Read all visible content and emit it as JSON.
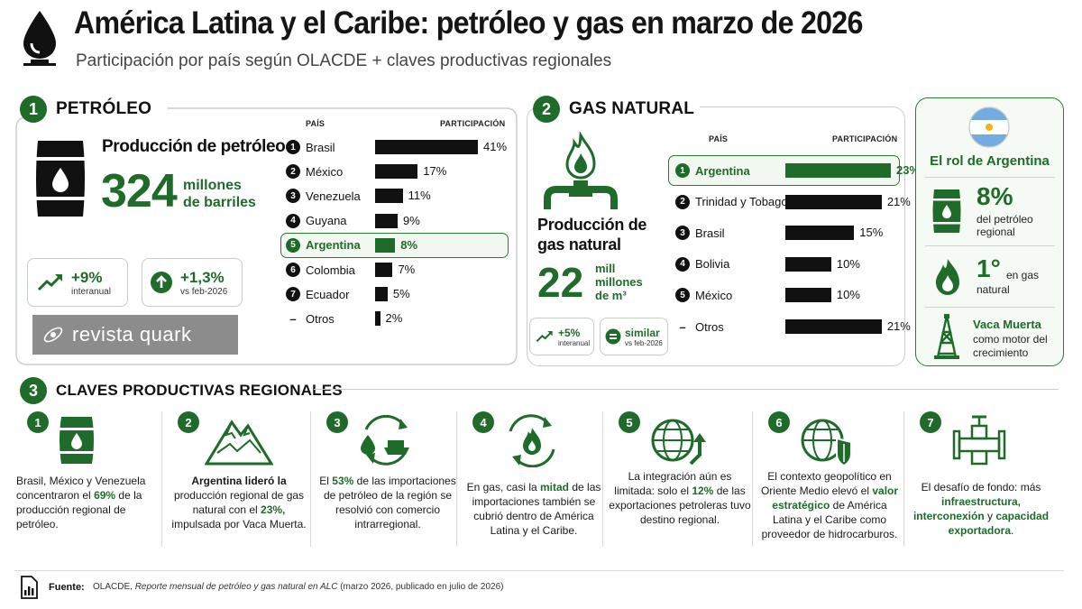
{
  "header": {
    "title": "América Latina y el Caribe: petróleo y gas en marzo de 2026",
    "subtitle": "Participación por país según OLACDE + claves productivas regionales"
  },
  "petroleo": {
    "num": "1",
    "title": "PETRÓLEO",
    "prod_label": "Producción de petróleo",
    "value": "324",
    "unit_line1": "millones",
    "unit_line2": "de barriles",
    "card1_big": "+9%",
    "card1_small": "interanual",
    "card2_big": "+1,3%",
    "card2_small": "vs feb-2026",
    "col_pais": "PAÍS",
    "col_part": "PARTICIPACIÓN"
  },
  "watermark": "revista quark",
  "gas": {
    "num": "2",
    "title": "GAS NATURAL",
    "prod_label_1": "Producción de",
    "prod_label_2": "gas natural",
    "value": "22",
    "unit_line1": "mill",
    "unit_line2": "millones",
    "unit_line3": "de m³",
    "card1_big": "+5%",
    "card1_small": "interanual",
    "card2_big": "similar",
    "card2_small": "vs feb-2026",
    "col_pais": "PAÍS",
    "col_part": "PARTICIPACIÓN"
  },
  "argentina": {
    "title": "El rol de Argentina",
    "stat1_value": "8%",
    "stat1_text1": "del petróleo",
    "stat1_text2": "regional",
    "stat2_value": "1°",
    "stat2_text1": "en gas",
    "stat2_text2": "natural",
    "stat3_title": "Vaca Muerta",
    "stat3_text1": "como motor del",
    "stat3_text2": "crecimiento"
  },
  "chart_data": [
    {
      "type": "bar",
      "categories": [
        "Brasil",
        "México",
        "Venezuela",
        "Guyana",
        "Argentina",
        "Colombia",
        "Ecuador",
        "Otros"
      ],
      "ranks": [
        "1",
        "2",
        "3",
        "4",
        "5",
        "6",
        "7",
        "–"
      ],
      "values": [
        41,
        17,
        11,
        9,
        8,
        7,
        5,
        2
      ],
      "labels": [
        "41%",
        "17%",
        "11%",
        "9%",
        "8%",
        "7%",
        "5%",
        "2%"
      ],
      "highlight": "Argentina",
      "highlight_color": "#1e6b2a",
      "bar_color": "#111111"
    },
    {
      "type": "bar",
      "categories": [
        "Argentina",
        "Trinidad y Tobago",
        "Brasil",
        "Bolivia",
        "México",
        "Otros"
      ],
      "ranks": [
        "1",
        "2",
        "3",
        "4",
        "5",
        "–"
      ],
      "values": [
        23,
        21,
        15,
        10,
        10,
        21
      ],
      "labels": [
        "23%",
        "21%",
        "15%",
        "10%",
        "10%",
        "21%"
      ],
      "highlight": "Argentina",
      "highlight_color": "#1e6b2a",
      "bar_color": "#111111"
    }
  ],
  "claves": {
    "num": "3",
    "title": "CLAVES PRODUCTIVAS REGIONALES",
    "items": [
      {
        "num": "1",
        "icon": "barrel-icon",
        "parts": [
          [
            "Brasil, México y Venezuela concentraron el ",
            ""
          ],
          [
            "69%",
            "g"
          ],
          [
            " de la producción regional de petróleo.",
            ""
          ]
        ]
      },
      {
        "num": "2",
        "icon": "mountain-icon",
        "parts": [
          [
            "Argentina lideró la",
            "b"
          ],
          [
            " producción regional de gas natural con el ",
            ""
          ],
          [
            "23%,",
            "g"
          ],
          [
            " impulsada por Vaca Muerta.",
            ""
          ]
        ]
      },
      {
        "num": "3",
        "icon": "trade-cycle-icon",
        "parts": [
          [
            "El ",
            ""
          ],
          [
            "53%",
            "g"
          ],
          [
            " de las importaciones de petróleo de la región se resolvió con comercio intrarregional.",
            ""
          ]
        ]
      },
      {
        "num": "4",
        "icon": "gas-cycle-icon",
        "parts": [
          [
            "En gas, casi la ",
            ""
          ],
          [
            "mitad",
            "g"
          ],
          [
            " de las importaciones también se cubrió dentro de América Latina y el Caribe.",
            ""
          ]
        ]
      },
      {
        "num": "5",
        "icon": "globe-export-icon",
        "parts": [
          [
            "La integración aún es limitada: solo el ",
            ""
          ],
          [
            "12%",
            "g"
          ],
          [
            " de las exportaciones petroleras tuvo destino regional.",
            ""
          ]
        ]
      },
      {
        "num": "6",
        "icon": "globe-shield-icon",
        "parts": [
          [
            "El contexto geopolítico en Oriente Medio elevó el ",
            ""
          ],
          [
            "valor estratégico",
            "g"
          ],
          [
            " de América Latina y el Caribe como proveedor de hidrocarburos.",
            ""
          ]
        ]
      },
      {
        "num": "7",
        "icon": "pipeline-icon",
        "parts": [
          [
            "El desafío de fondo: más ",
            ""
          ],
          [
            "infraestructura,",
            "g"
          ],
          [
            " ",
            ""
          ],
          [
            "interconexión",
            "g"
          ],
          [
            " y ",
            ""
          ],
          [
            "capacidad exportadora",
            "g"
          ],
          [
            ".",
            ""
          ]
        ]
      }
    ]
  },
  "fuente": {
    "label": "Fuente:",
    "text_pre": "OLACDE, ",
    "text_italic": "Reporte mensual de petróleo y gas natural en ALC",
    "text_post": " (marzo 2026, publicado en julio de 2026)"
  },
  "colors": {
    "accent": "#1e6b2a",
    "bar": "#111111",
    "argentina_bg": "#f5faf4"
  }
}
